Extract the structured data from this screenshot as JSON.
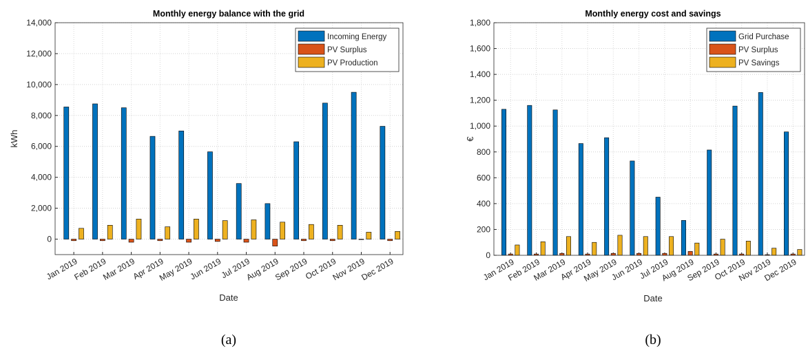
{
  "chart_data": [
    {
      "type": "bar",
      "title": "Monthly energy balance with the grid",
      "caption": "(a)",
      "x_label": "Date",
      "y_label": "kWh",
      "categories": [
        "Jan 2019",
        "Feb 2019",
        "Mar 2019",
        "Apr 2019",
        "May 2019",
        "Jun 2019",
        "Jul 2019",
        "Aug 2019",
        "Sep 2019",
        "Oct 2019",
        "Nov 2019",
        "Dec 2019"
      ],
      "series": [
        {
          "name": "Incoming Energy",
          "color": "#0072BD",
          "values": [
            8550,
            8750,
            8500,
            6650,
            7000,
            5650,
            3600,
            2300,
            6300,
            8800,
            9500,
            7300
          ]
        },
        {
          "name": "PV Surplus",
          "color": "#D95319",
          "values": [
            -100,
            -100,
            -200,
            -100,
            -200,
            -150,
            -200,
            -450,
            -100,
            -100,
            -30,
            -100
          ]
        },
        {
          "name": "PV Production",
          "color": "#EDB120",
          "values": [
            700,
            900,
            1300,
            800,
            1300,
            1200,
            1250,
            1100,
            950,
            900,
            450,
            500
          ]
        }
      ],
      "ylim": [
        -1000,
        14000
      ],
      "yticks": [
        0,
        {
          "value": 2000,
          "label": "2,000"
        },
        {
          "value": 4000,
          "label": "4,000"
        },
        {
          "value": 6000,
          "label": "6,000"
        },
        {
          "value": 8000,
          "label": "8,000"
        },
        {
          "value": 10000,
          "label": "10,000"
        },
        {
          "value": 12000,
          "label": "12,000"
        },
        {
          "value": 14000,
          "label": "14,000"
        }
      ],
      "grid": true,
      "legend": "northeast"
    },
    {
      "type": "bar",
      "title": "Monthly energy cost and savings",
      "caption": "(b)",
      "x_label": "Date",
      "y_label": "€",
      "categories": [
        "Jan 2019",
        "Feb 2019",
        "Mar 2019",
        "Apr 2019",
        "May 2019",
        "Jun 2019",
        "Jul 2019",
        "Aug 2019",
        "Sep 2019",
        "Oct 2019",
        "Nov 2019",
        "Dec 2019"
      ],
      "series": [
        {
          "name": "Grid Purchase",
          "color": "#0072BD",
          "values": [
            1130,
            1160,
            1125,
            865,
            910,
            730,
            450,
            270,
            815,
            1155,
            1260,
            955
          ]
        },
        {
          "name": "PV Surplus",
          "color": "#D95319",
          "values": [
            10,
            10,
            15,
            10,
            15,
            15,
            15,
            30,
            10,
            10,
            5,
            10
          ]
        },
        {
          "name": "PV Savings",
          "color": "#EDB120",
          "values": [
            80,
            105,
            145,
            100,
            155,
            145,
            145,
            95,
            125,
            110,
            55,
            45
          ]
        }
      ],
      "ylim": [
        0,
        1800
      ],
      "yticks": [
        0,
        200,
        400,
        600,
        800,
        {
          "value": 1000,
          "label": "1,000"
        },
        {
          "value": 1200,
          "label": "1,200"
        },
        {
          "value": 1400,
          "label": "1,400"
        },
        {
          "value": 1600,
          "label": "1,600"
        },
        {
          "value": 1800,
          "label": "1,800"
        }
      ],
      "grid": true,
      "legend": "northeast"
    }
  ]
}
